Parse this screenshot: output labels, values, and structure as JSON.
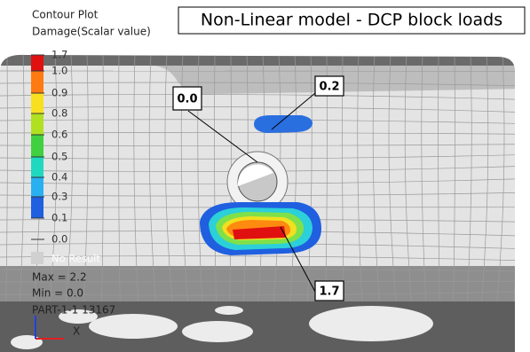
{
  "header": {
    "plot": "Contour Plot",
    "quantity": "Damage(Scalar value)",
    "title": "Non-Linear model - DCP block loads"
  },
  "legend": {
    "labels": [
      "1.7",
      "1.0",
      "0.9",
      "0.8",
      "0.6",
      "0.5",
      "0.4",
      "0.3",
      "0.1",
      "0.0",
      "No Result"
    ]
  },
  "stats": {
    "max": "Max = 2.2",
    "min": "Min = 0.0",
    "part": "PART-1-1 13167"
  },
  "axis": {
    "x": "X"
  },
  "callouts": [
    "0.0",
    "0.2",
    "1.7"
  ]
}
